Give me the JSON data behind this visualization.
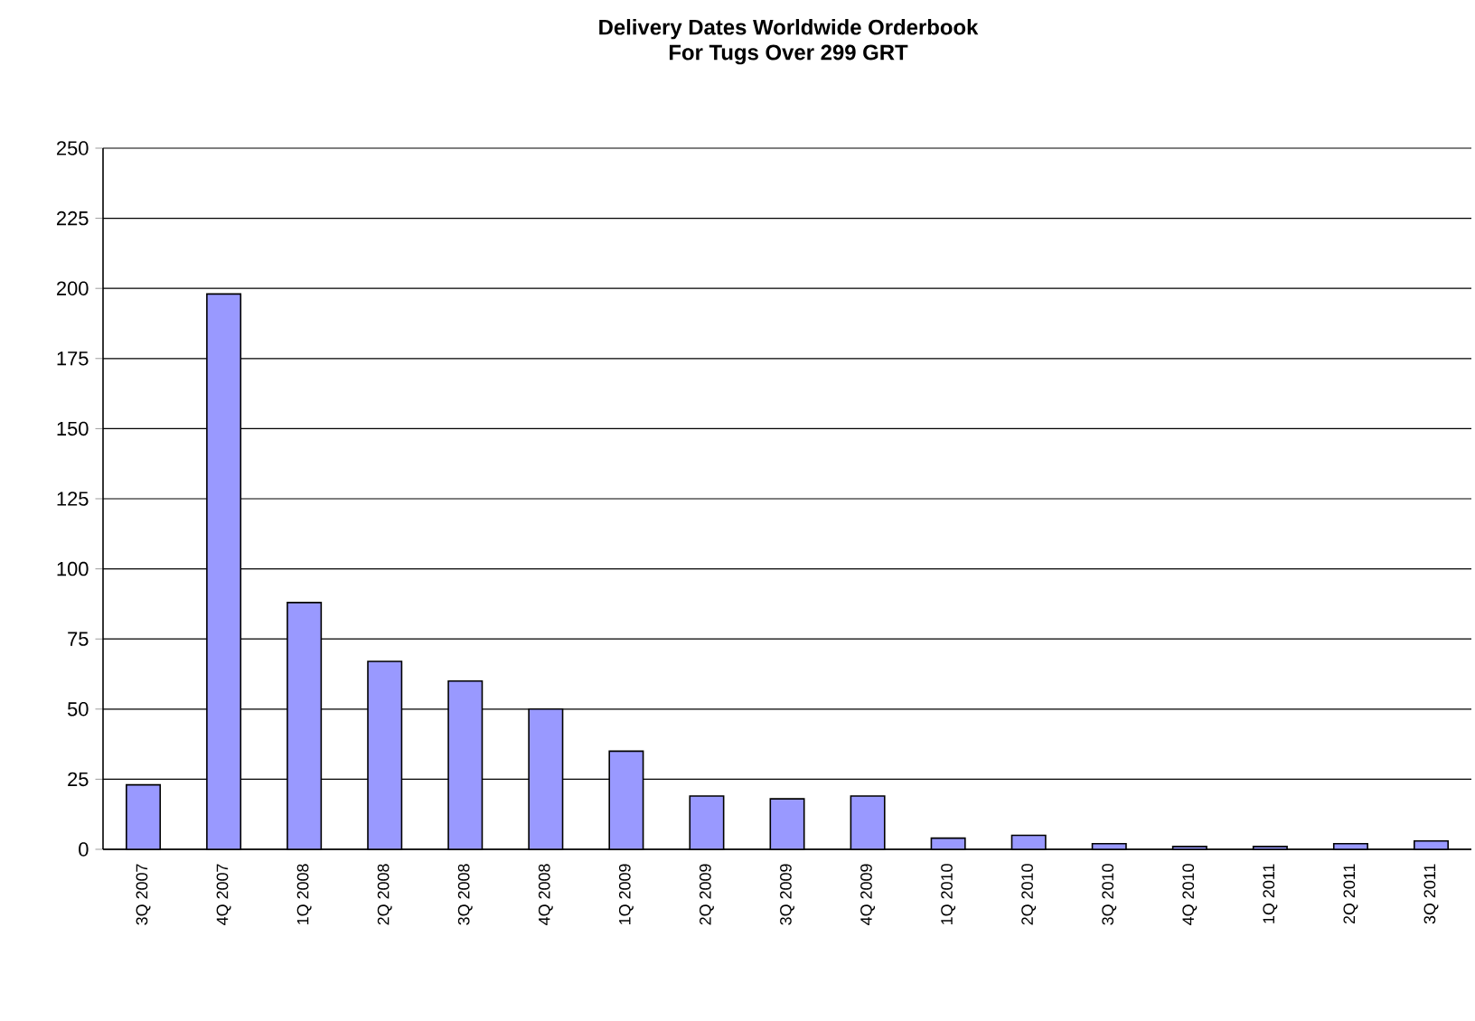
{
  "chart_data": {
    "type": "bar",
    "title": "Delivery Dates Worldwide Orderbook",
    "subtitle": "For Tugs Over 299 GRT",
    "categories": [
      "3Q 2007",
      "4Q 2007",
      "1Q 2008",
      "2Q 2008",
      "3Q 2008",
      "4Q 2008",
      "1Q 2009",
      "2Q 2009",
      "3Q 2009",
      "4Q 2009",
      "1Q 2010",
      "2Q 2010",
      "3Q 2010",
      "4Q 2010",
      "1Q 2011",
      "2Q 2011",
      "3Q 2011"
    ],
    "values": [
      23,
      198,
      88,
      67,
      60,
      50,
      35,
      19,
      18,
      19,
      4,
      5,
      2,
      1,
      1,
      2,
      3
    ],
    "color": "#9999ff",
    "ylim": [
      0,
      250
    ],
    "yticks": [
      0,
      25,
      50,
      75,
      100,
      125,
      150,
      175,
      200,
      225,
      250
    ],
    "grid": "y"
  }
}
